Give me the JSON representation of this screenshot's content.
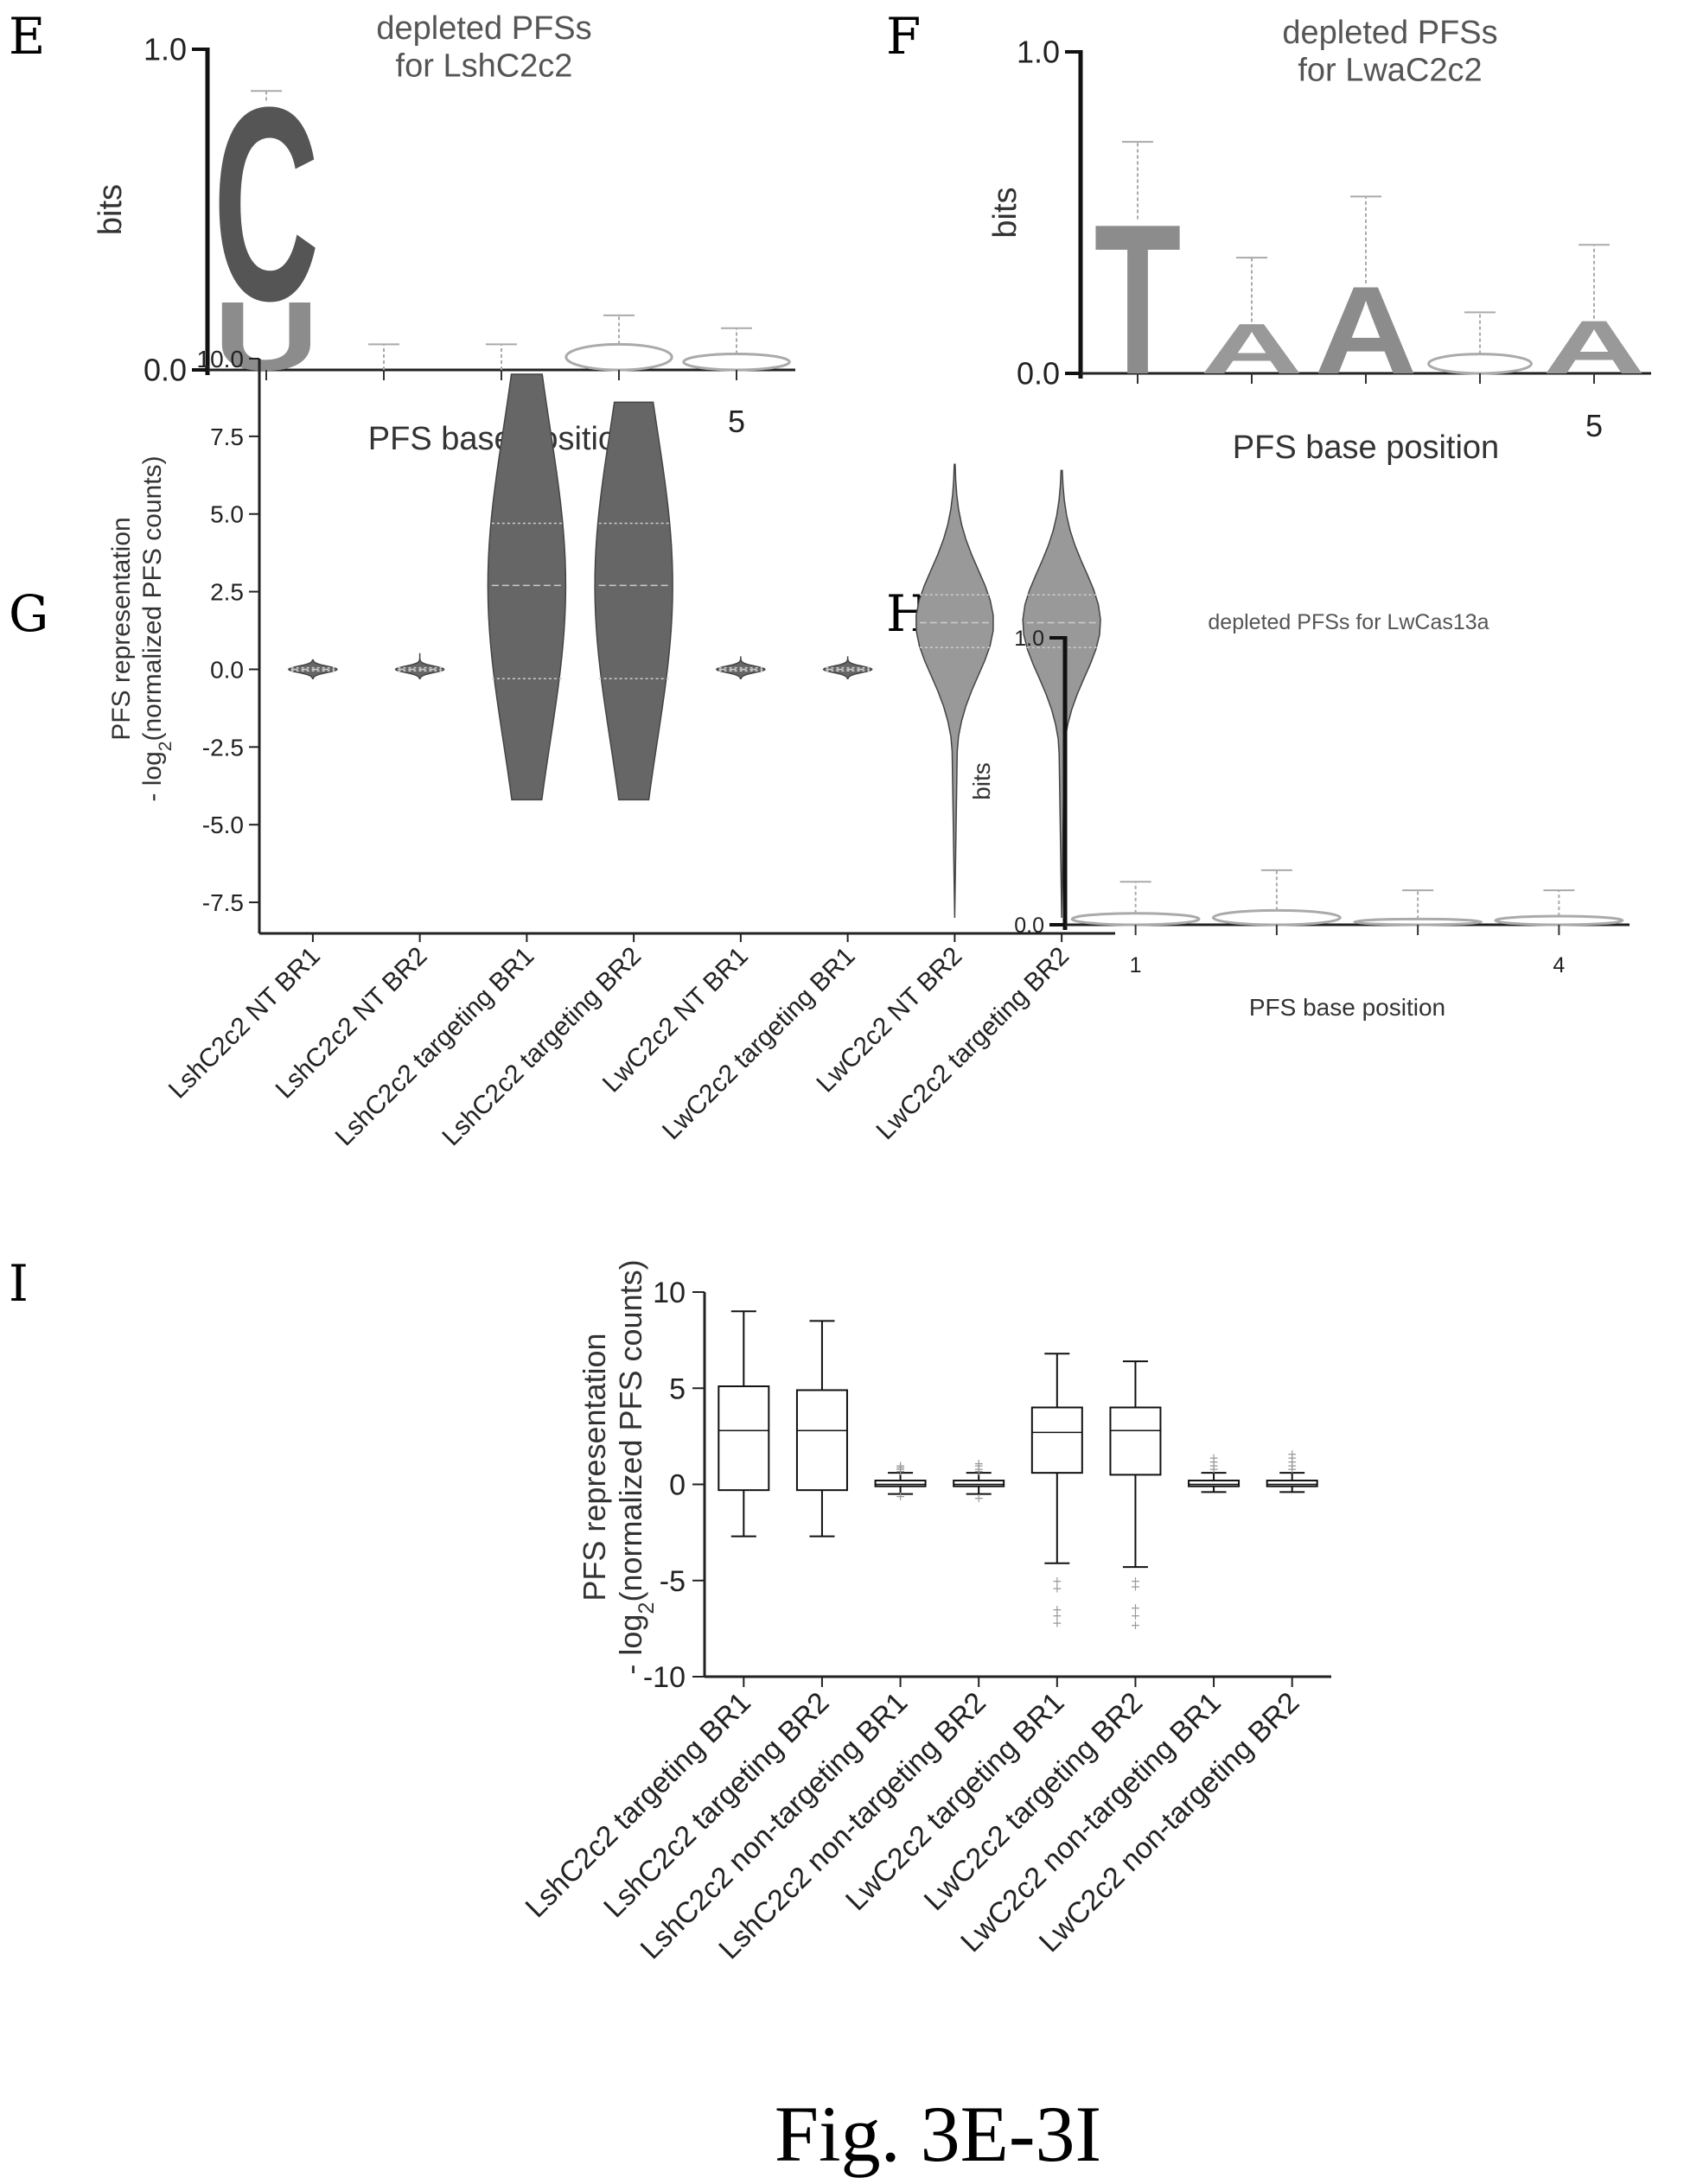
{
  "figure_caption": "Fig. 3E-3I",
  "chart_data": [
    {
      "panel": "E",
      "type": "sequence-logo",
      "title_lines": [
        "depleted PFSs",
        "for LshC2c2"
      ],
      "ylabel": "bits",
      "xlabel": "PFS base position",
      "yticks": [
        "1.0",
        "0.0"
      ],
      "xticks": [
        "5"
      ],
      "ylim": [
        0,
        1.0
      ],
      "positions": [
        {
          "pos": 1,
          "letters": [
            {
              "base": "C",
              "bits": 0.62,
              "color": "#555555"
            },
            {
              "base": "U",
              "bits": 0.22,
              "color": "#8c8c8c"
            }
          ],
          "error_top": 0.87
        },
        {
          "pos": 2,
          "letters": [],
          "error_top": 0.08
        },
        {
          "pos": 3,
          "letters": [],
          "error_top": 0.08
        },
        {
          "pos": 4,
          "letters": [
            {
              "base": "N",
              "bits": 0.08,
              "color": "#aaaaaa"
            }
          ],
          "error_top": 0.17
        },
        {
          "pos": 5,
          "letters": [
            {
              "base": "N",
              "bits": 0.05,
              "color": "#aaaaaa"
            }
          ],
          "error_top": 0.13
        }
      ]
    },
    {
      "panel": "F",
      "type": "sequence-logo",
      "title_lines": [
        "depleted PFSs",
        "for LwaC2c2"
      ],
      "ylabel": "bits",
      "xlabel": "PFS base position",
      "yticks": [
        "1.0",
        "0.0"
      ],
      "xticks": [
        "5"
      ],
      "ylim": [
        0,
        1.0
      ],
      "positions": [
        {
          "pos": 1,
          "letters": [
            {
              "base": "T",
              "bits": 0.48,
              "color": "#8c8c8c"
            }
          ],
          "error_top": 0.72
        },
        {
          "pos": 2,
          "letters": [
            {
              "base": "A",
              "bits": 0.16,
              "color": "#999999"
            }
          ],
          "error_top": 0.36
        },
        {
          "pos": 3,
          "letters": [
            {
              "base": "A",
              "bits": 0.28,
              "color": "#8c8c8c"
            }
          ],
          "error_top": 0.55
        },
        {
          "pos": 4,
          "letters": [
            {
              "base": "N",
              "bits": 0.06,
              "color": "#aaaaaa"
            }
          ],
          "error_top": 0.19
        },
        {
          "pos": 5,
          "letters": [
            {
              "base": "A",
              "bits": 0.17,
              "color": "#999999"
            }
          ],
          "error_top": 0.4
        }
      ]
    },
    {
      "panel": "G",
      "type": "violin",
      "ylabel_lines": [
        "PFS representation",
        "- log2(normalized PFS counts)"
      ],
      "yticks": [
        "10.0",
        "7.5",
        "5.0",
        "2.5",
        "0.0",
        "-2.5",
        "-5.0",
        "-7.5"
      ],
      "ylim": [
        -8.5,
        10.0
      ],
      "categories": [
        "LshC2c2 NT BR1",
        "LshC2c2 NT BR2",
        "LshC2c2 targeting BR1",
        "LshC2c2 targeting BR2",
        "LwC2c2 NT BR1",
        "LwC2c2 targeting BR1",
        "LwC2c2 NT BR2",
        "LwC2c2 targeting BR2"
      ],
      "violins": [
        {
          "min": -0.3,
          "max": 0.3,
          "q1": -0.05,
          "median": 0.0,
          "q3": 0.05,
          "color": "#666666"
        },
        {
          "min": -0.3,
          "max": 0.5,
          "q1": -0.05,
          "median": 0.0,
          "q3": 0.05,
          "color": "#666666"
        },
        {
          "min": -4.2,
          "max": 9.5,
          "q1": -0.3,
          "median": 2.7,
          "q3": 4.7,
          "color": "#666666"
        },
        {
          "min": -4.2,
          "max": 8.6,
          "q1": -0.3,
          "median": 2.7,
          "q3": 4.7,
          "color": "#666666"
        },
        {
          "min": -0.3,
          "max": 0.4,
          "q1": -0.05,
          "median": 0.0,
          "q3": 0.05,
          "color": "#666666"
        },
        {
          "min": -0.3,
          "max": 0.4,
          "q1": -0.05,
          "median": 0.0,
          "q3": 0.05,
          "color": "#666666"
        },
        {
          "min": -8.0,
          "max": 6.6,
          "q1": 0.7,
          "median": 1.5,
          "q3": 2.4,
          "color": "#999999"
        },
        {
          "min": -8.0,
          "max": 6.4,
          "q1": 0.7,
          "median": 1.5,
          "q3": 2.4,
          "color": "#999999"
        }
      ]
    },
    {
      "panel": "H",
      "type": "sequence-logo",
      "title_lines": [
        "depleted PFSs for LwCas13a"
      ],
      "ylabel": "bits",
      "xlabel": "PFS base position",
      "yticks": [
        "1.0",
        "0.0"
      ],
      "xticks": [
        "1",
        "4"
      ],
      "ylim": [
        0,
        1.0
      ],
      "positions": [
        {
          "pos": 1,
          "letters": [
            {
              "base": "N",
              "bits": 0.04,
              "color": "#aaaaaa"
            }
          ],
          "error_top": 0.15
        },
        {
          "pos": 2,
          "letters": [
            {
              "base": "N",
              "bits": 0.05,
              "color": "#aaaaaa"
            }
          ],
          "error_top": 0.19
        },
        {
          "pos": 3,
          "letters": [
            {
              "base": "N",
              "bits": 0.02,
              "color": "#aaaaaa"
            }
          ],
          "error_top": 0.12
        },
        {
          "pos": 4,
          "letters": [
            {
              "base": "N",
              "bits": 0.03,
              "color": "#aaaaaa"
            }
          ],
          "error_top": 0.12
        }
      ]
    },
    {
      "panel": "I",
      "type": "box",
      "ylabel_lines": [
        "PFS representation",
        "- log2(normalized PFS counts)"
      ],
      "yticks": [
        "10",
        "5",
        "0",
        "-5",
        "-10"
      ],
      "ylim": [
        -10,
        10
      ],
      "categories": [
        "LshC2c2 targeting BR1",
        "LshC2c2 targeting BR2",
        "LshC2c2 non-targeting BR1",
        "LshC2c2 non-targeting BR2",
        "LwC2c2 targeting BR1",
        "LwC2c2 targeting BR2",
        "LwC2c2 non-targeting BR1",
        "LwC2c2 non-targeting BR2"
      ],
      "boxes": [
        {
          "min": -2.7,
          "q1": -0.3,
          "median": 2.8,
          "q3": 5.1,
          "max": 9.0,
          "outliers": []
        },
        {
          "min": -2.7,
          "q1": -0.3,
          "median": 2.8,
          "q3": 4.9,
          "max": 8.5,
          "outliers": []
        },
        {
          "min": -0.5,
          "q1": -0.1,
          "median": 0.0,
          "q3": 0.2,
          "max": 0.6,
          "outliers": [
            0.7,
            0.8,
            0.9,
            1.0,
            -0.6
          ]
        },
        {
          "min": -0.5,
          "q1": -0.1,
          "median": 0.0,
          "q3": 0.2,
          "max": 0.6,
          "outliers": [
            0.7,
            0.8,
            1.0,
            1.1,
            -0.7
          ]
        },
        {
          "min": -4.1,
          "q1": 0.6,
          "median": 2.7,
          "q3": 4.0,
          "max": 6.8,
          "outliers": [
            -5.0,
            -5.4,
            -6.5,
            -6.8,
            -7.2
          ]
        },
        {
          "min": -4.3,
          "q1": 0.5,
          "median": 2.8,
          "q3": 4.0,
          "max": 6.4,
          "outliers": [
            -5.0,
            -5.3,
            -6.4,
            -6.8,
            -7.3
          ]
        },
        {
          "min": -0.4,
          "q1": -0.1,
          "median": 0.0,
          "q3": 0.2,
          "max": 0.6,
          "outliers": [
            0.8,
            1.0,
            1.2,
            1.4
          ]
        },
        {
          "min": -0.4,
          "q1": -0.1,
          "median": 0.0,
          "q3": 0.2,
          "max": 0.6,
          "outliers": [
            0.8,
            1.0,
            1.2,
            1.4,
            1.6
          ]
        }
      ]
    }
  ]
}
